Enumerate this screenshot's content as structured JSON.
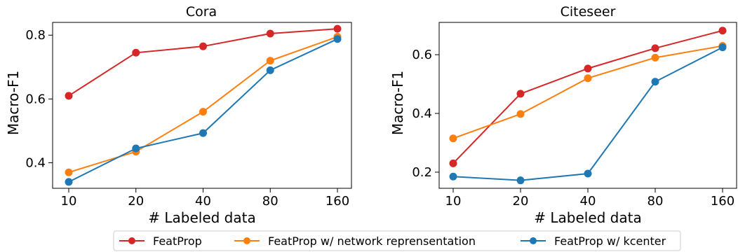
{
  "chart_data": [
    {
      "type": "line",
      "title": "Cora",
      "xlabel": "# Labeled data",
      "ylabel": "Macro-F1",
      "categories": [
        "10",
        "20",
        "40",
        "80",
        "160"
      ],
      "ylim": [
        0.32,
        0.84
      ],
      "yticks": [
        "0.4",
        "0.6",
        "0.8"
      ],
      "ytick_values": [
        0.4,
        0.6,
        0.8
      ],
      "series": [
        {
          "name": "FeatProp",
          "color": "#d62728",
          "values": [
            0.61,
            0.745,
            0.765,
            0.805,
            0.82
          ]
        },
        {
          "name": "FeatProp w/ network reprensentation",
          "color": "#ff7f0e",
          "values": [
            0.37,
            0.435,
            0.56,
            0.72,
            0.795
          ]
        },
        {
          "name": "FeatProp w/ kcenter",
          "color": "#1f77b4",
          "values": [
            0.34,
            0.445,
            0.493,
            0.69,
            0.788
          ]
        }
      ]
    },
    {
      "type": "line",
      "title": "Citeseer",
      "xlabel": "# Labeled data",
      "ylabel": "Macro-F1",
      "categories": [
        "10",
        "20",
        "40",
        "80",
        "160"
      ],
      "ylim": [
        0.145,
        0.71
      ],
      "yticks": [
        "0.2",
        "0.4",
        "0.6"
      ],
      "ytick_values": [
        0.2,
        0.4,
        0.6
      ],
      "series": [
        {
          "name": "FeatProp",
          "color": "#d62728",
          "values": [
            0.23,
            0.467,
            0.553,
            0.622,
            0.682
          ]
        },
        {
          "name": "FeatProp w/ network reprensentation",
          "color": "#ff7f0e",
          "values": [
            0.315,
            0.398,
            0.52,
            0.59,
            0.63
          ]
        },
        {
          "name": "FeatProp w/ kcenter",
          "color": "#1f77b4",
          "values": [
            0.185,
            0.172,
            0.195,
            0.508,
            0.625
          ]
        }
      ]
    }
  ],
  "legend": {
    "placement": "bottom-center",
    "entries": [
      {
        "label": "FeatProp",
        "color": "#d62728"
      },
      {
        "label": "FeatProp w/ network reprensentation",
        "color": "#ff7f0e"
      },
      {
        "label": "FeatProp w/ kcenter",
        "color": "#1f77b4"
      }
    ]
  }
}
